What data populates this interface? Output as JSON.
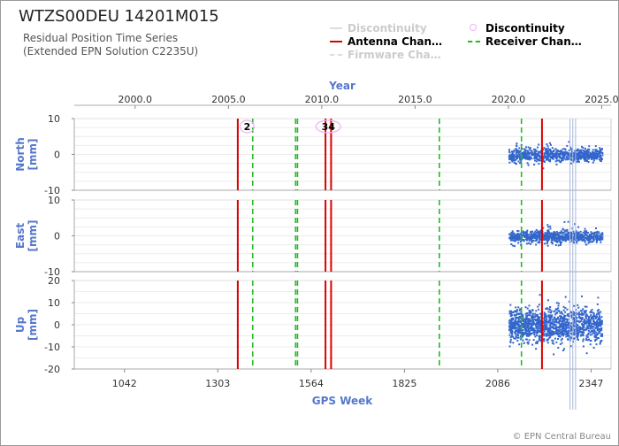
{
  "header": {
    "title": "WTZS00DEU 14201M015",
    "subtitle_line1": "Residual Position Time Series",
    "subtitle_line2": "(Extended EPN Solution C2235U)"
  },
  "legend": [
    {
      "label": "Discontinuity",
      "style": "faint-line",
      "color": "#cccccc",
      "text_color": "#cccccc"
    },
    {
      "label": "Discontinuity",
      "style": "circle",
      "color": "#e8b4f0",
      "text_color": "#222222"
    },
    {
      "label": "Antenna Chan…",
      "style": "solid",
      "color": "#dd0000",
      "text_color": "#222222"
    },
    {
      "label": "Receiver Chan…",
      "style": "dashed",
      "color": "#22bb22",
      "text_color": "#222222"
    },
    {
      "label": "Firmware Cha…",
      "style": "faint-dashed",
      "color": "#cccccc",
      "text_color": "#cccccc"
    }
  ],
  "footer": "© EPN Central Bureau",
  "chart_data": {
    "type": "scatter",
    "x_top": {
      "label": "Year",
      "ticks": [
        2000,
        2005,
        2010,
        2015,
        2020,
        2025
      ],
      "tick_labels": [
        "2000.0",
        "2005.0",
        "2010.0",
        "2015.0",
        "2020.0",
        "2025.0"
      ],
      "range": [
        1996.74,
        2025.5
      ]
    },
    "x_bottom": {
      "label": "GPS Week",
      "ticks": [
        1042,
        1303,
        1564,
        1825,
        2086,
        2347
      ],
      "tick_labels": [
        "1042",
        "1303",
        "1564",
        "1825",
        "2086",
        "2347"
      ]
    },
    "data_start_year": 2020.0,
    "data_end_year": 2025.0,
    "panels": [
      {
        "name": "North",
        "ylabel": "North\n[mm]",
        "ylim": [
          -10,
          10
        ],
        "ticks": [
          10,
          0,
          -10
        ],
        "tick_labels": [
          "10",
          "0",
          "-10"
        ],
        "noise_sd": 0.9,
        "outlier_amp": 3
      },
      {
        "name": "East",
        "ylabel": "East\n[mm]",
        "ylim": [
          -10,
          10
        ],
        "ticks": [
          10,
          0,
          -10
        ],
        "tick_labels": [
          "10",
          "0",
          "-10"
        ],
        "noise_sd": 0.8,
        "outlier_amp": 3
      },
      {
        "name": "Up",
        "ylabel": "Up\n[mm]",
        "ylim": [
          -20,
          20
        ],
        "ticks": [
          20,
          10,
          0,
          -10,
          -20
        ],
        "tick_labels": [
          "20",
          "10",
          "0",
          "-10",
          "-20"
        ],
        "noise_sd": 3.8,
        "outlier_amp": 8
      }
    ],
    "antenna_changes": [
      2005.5,
      2010.2,
      2010.5,
      2021.8
    ],
    "receiver_changes": [
      2005.5,
      2006.3,
      2008.6,
      2008.7,
      2016.3,
      2020.7
    ],
    "discontinuity_markers": [
      {
        "year": 2006.0,
        "label": "2"
      },
      {
        "year": 2010.35,
        "label": "34"
      }
    ],
    "data_gaps_faint": [
      2023.3,
      2023.45,
      2023.6
    ]
  }
}
